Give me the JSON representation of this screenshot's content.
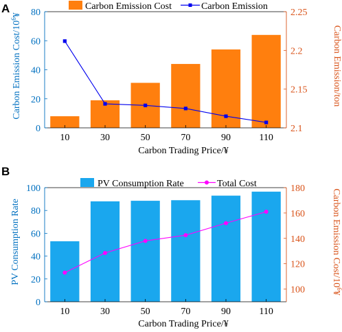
{
  "chart_data": [
    {
      "panel_label": "A",
      "type": "bar+line",
      "categories": [
        "10",
        "30",
        "50",
        "70",
        "90",
        "110"
      ],
      "xlabel": "Carbon Trading Price/¥",
      "ylabel_left_base": "Carbon Emission Cost/10",
      "ylabel_left_exp": "6",
      "ylabel_left_unit": "¥",
      "ylabel_right": "Carbon Emission/ton",
      "ylim_left": [
        0,
        80
      ],
      "yticks_left": [
        0,
        20,
        40,
        60,
        80
      ],
      "ylim_right": [
        2.1,
        2.25
      ],
      "yticks_right": [
        2.1,
        2.15,
        2.2,
        2.25
      ],
      "ytick_labels_right": [
        "2.1",
        "2.15",
        "2.2",
        "2.25"
      ],
      "bar_series": {
        "name": "Carbon Emission Cost",
        "color": "#ff7f0e",
        "values": [
          8,
          19,
          31,
          44,
          54,
          64
        ]
      },
      "line_series": {
        "name": "Carbon Emission",
        "color": "#0000ee",
        "marker": "square",
        "values": [
          2.212,
          2.131,
          2.129,
          2.125,
          2.115,
          2.107
        ]
      },
      "left_axis_color": "#0070c0",
      "right_axis_color": "#d95319",
      "legend_position": "top"
    },
    {
      "panel_label": "B",
      "type": "bar+line",
      "categories": [
        "10",
        "30",
        "50",
        "70",
        "90",
        "110"
      ],
      "xlabel": "Carbon Trading Price/¥",
      "ylabel_left": "PV Consumption Rate",
      "ylabel_right_base": "Carbon Emission Cost/10",
      "ylabel_right_exp": "6",
      "ylabel_right_unit": "¥",
      "ylim_left": [
        0,
        100
      ],
      "yticks_left": [
        0,
        20,
        40,
        60,
        80,
        100
      ],
      "ylim_right": [
        90,
        180
      ],
      "yticks_right": [
        100,
        120,
        140,
        160,
        180
      ],
      "bar_series": {
        "name": "PV Consumption Rate",
        "color": "#1aa7ee",
        "values": [
          53,
          88,
          88.5,
          89,
          93,
          96.5
        ]
      },
      "line_series": {
        "name": "Total Cost",
        "color": "#ff00ff",
        "marker": "circle",
        "values": [
          113,
          128.5,
          138,
          142.5,
          152,
          161
        ]
      },
      "left_axis_color": "#0070c0",
      "right_axis_color": "#d95319",
      "legend_position": "top"
    }
  ]
}
